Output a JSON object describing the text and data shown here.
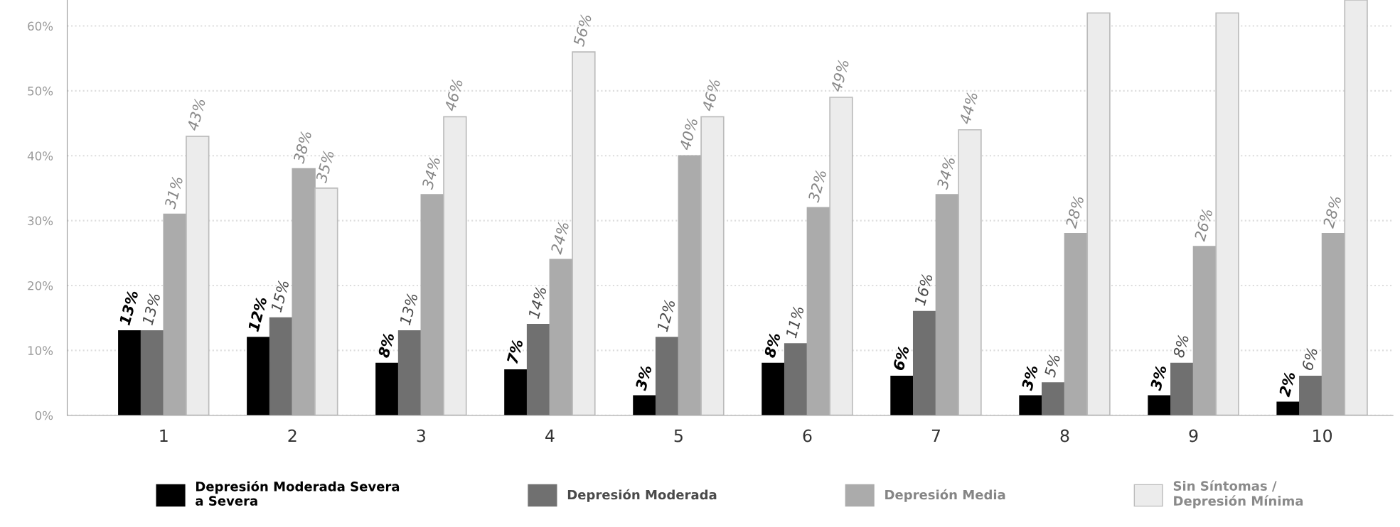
{
  "chart_data": {
    "type": "bar",
    "categories": [
      "1",
      "2",
      "3",
      "4",
      "5",
      "6",
      "7",
      "8",
      "9",
      "10"
    ],
    "series": [
      {
        "name": "Depresión Moderada Severa\na Severa",
        "color": "#000000",
        "values": [
          13,
          12,
          8,
          7,
          3,
          8,
          6,
          3,
          3,
          2
        ],
        "value_labels": [
          "13%",
          "12%",
          "8%",
          "7%",
          "3%",
          "8%",
          "6%",
          "3%",
          "3%",
          "2%"
        ]
      },
      {
        "name": "Depresión Moderada",
        "color": "#707070",
        "values": [
          13,
          15,
          13,
          14,
          12,
          11,
          16,
          5,
          8,
          6
        ],
        "value_labels": [
          "13%",
          "15%",
          "13%",
          "14%",
          "12%",
          "11%",
          "16%",
          "5%",
          "8%",
          "6%"
        ]
      },
      {
        "name": "Depresión Media",
        "color": "#ababab",
        "values": [
          31,
          38,
          34,
          24,
          40,
          32,
          34,
          28,
          26,
          28
        ],
        "value_labels": [
          "31%",
          "38%",
          "34%",
          "24%",
          "40%",
          "32%",
          "34%",
          "28%",
          "26%",
          "28%"
        ]
      },
      {
        "name": "Sin Síntomas /\nDepresión Mínima",
        "color": "#ececec",
        "values": [
          43,
          35,
          46,
          56,
          46,
          49,
          44,
          62,
          62,
          64
        ],
        "value_labels": [
          "43%",
          "35%",
          "46%",
          "56%",
          "46%",
          "49%",
          "44%",
          null,
          null,
          null
        ]
      }
    ],
    "ylim": [
      0,
      64
    ],
    "yticks": [
      {
        "value": 0,
        "label": "0%"
      },
      {
        "value": 10,
        "label": "10%"
      },
      {
        "value": 20,
        "label": "20%"
      },
      {
        "value": 30,
        "label": "30%"
      },
      {
        "value": 40,
        "label": "40%"
      },
      {
        "value": 50,
        "label": "50%"
      },
      {
        "value": 60,
        "label": "60%"
      }
    ],
    "grid": "y",
    "legend": "bottom"
  }
}
